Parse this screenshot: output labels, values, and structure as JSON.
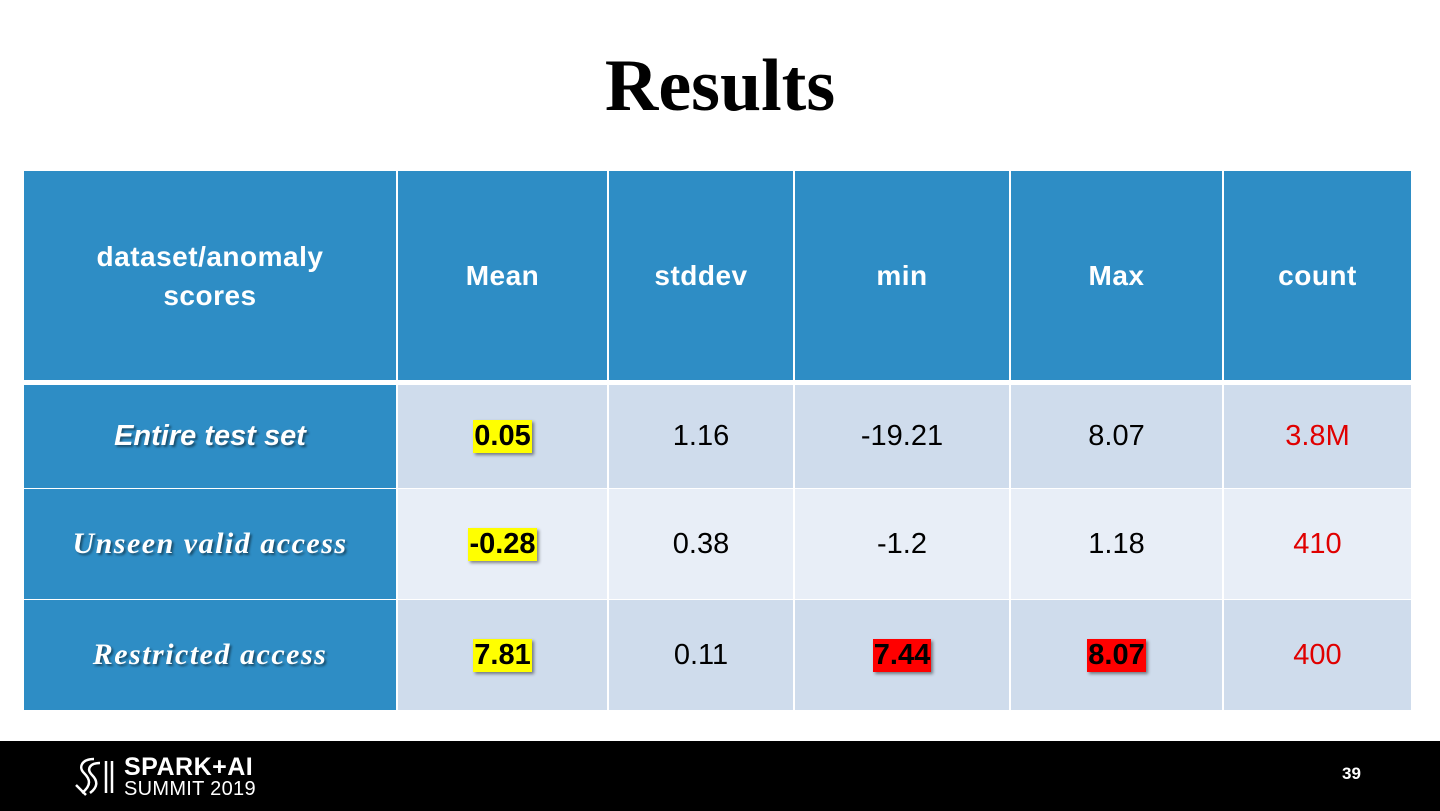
{
  "title": "Results",
  "table": {
    "header": [
      "dataset/anomaly scores",
      "Mean",
      "stddev",
      "min",
      "Max",
      "count"
    ],
    "rows": [
      [
        "Entire test set",
        "0.05",
        "1.16",
        "-19.21",
        "8.07",
        "3.8M"
      ],
      [
        "Unseen valid access",
        "-0.28",
        "0.38",
        "-1.2",
        "1.18",
        "410"
      ],
      [
        "Restricted access",
        "7.81",
        "0.11",
        "7.44",
        "8.07",
        "400"
      ]
    ]
  },
  "footer": {
    "logo_line1": "SPARK+AI",
    "logo_line2": "SUMMIT 2019",
    "page_number": "39"
  }
}
